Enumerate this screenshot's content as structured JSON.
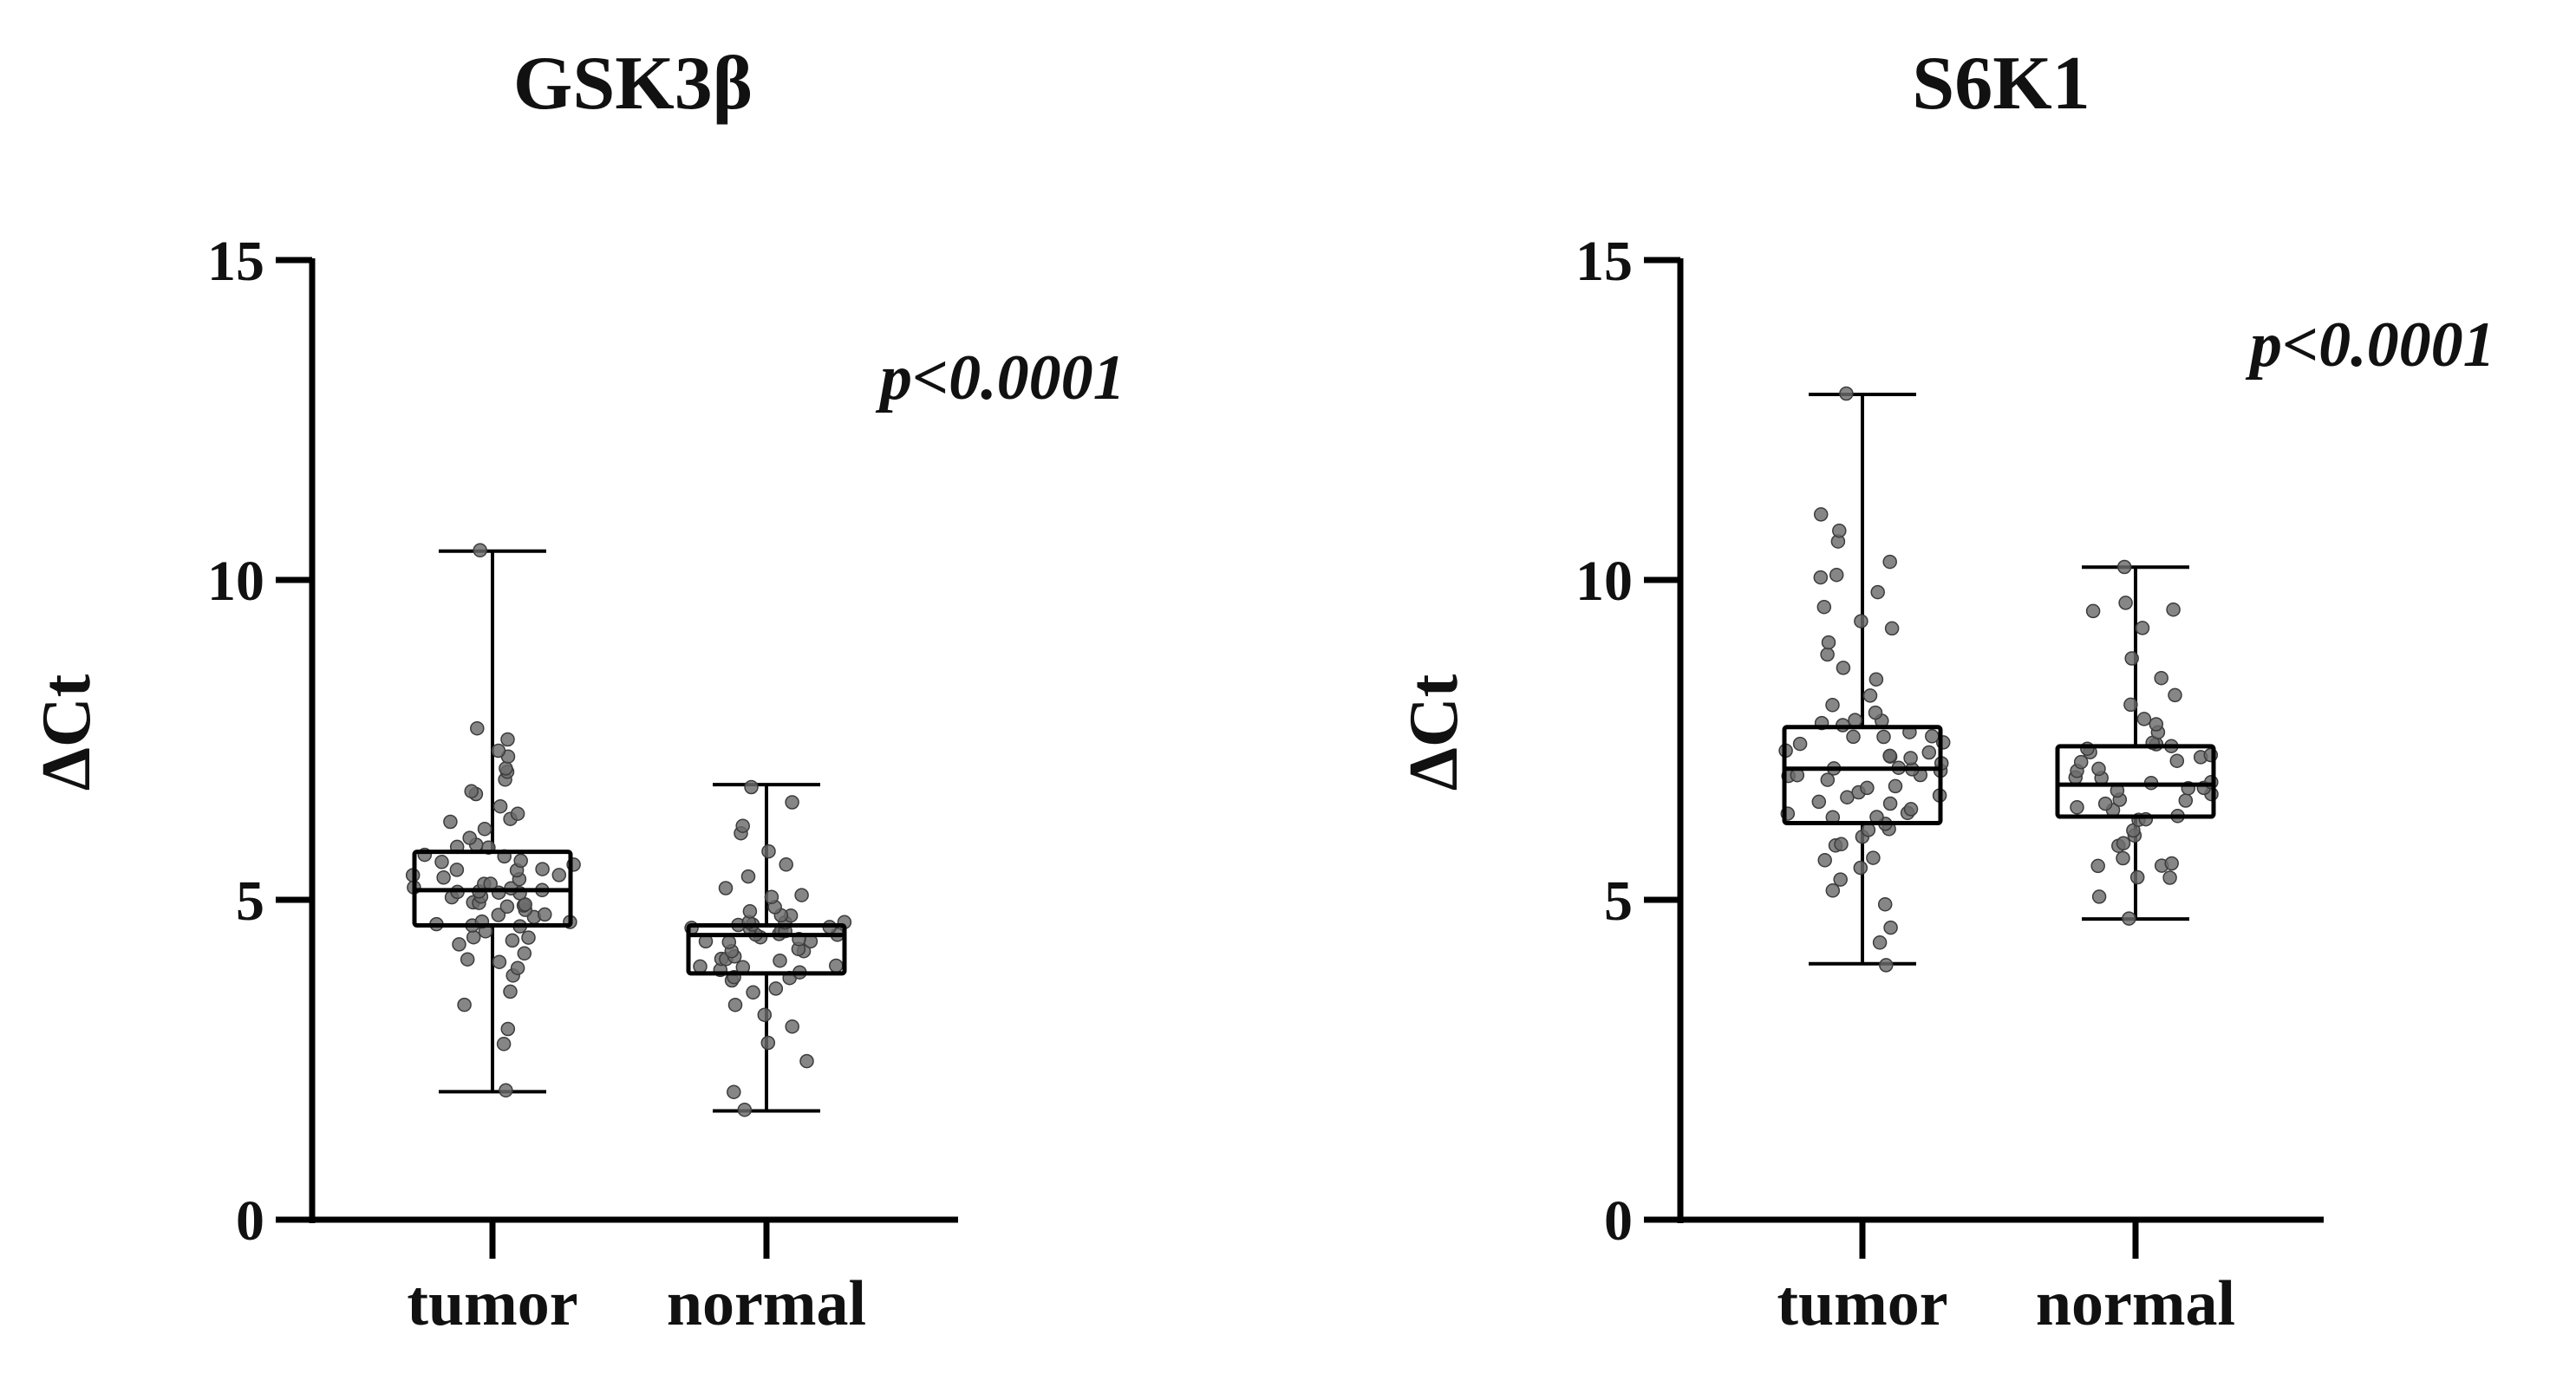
{
  "chart_data": [
    {
      "type": "box",
      "title": "GSK3β",
      "xlabel": "",
      "ylabel": "ΔCt",
      "ylim": [
        0,
        15
      ],
      "yticks": [
        "0",
        "5",
        "10",
        "15"
      ],
      "annotation": "p<0.0001",
      "grid": false,
      "series": [
        {
          "category": "tumor",
          "min": 2.0,
          "q1": 4.6,
          "median": 5.15,
          "q3": 5.75,
          "max": 10.45,
          "points": [
            2.0,
            2.8,
            3.0,
            3.4,
            3.6,
            3.8,
            3.9,
            4.0,
            4.1,
            4.2,
            4.3,
            4.35,
            4.4,
            4.45,
            4.5,
            4.55,
            4.6,
            4.6,
            4.65,
            4.7,
            4.7,
            4.75,
            4.8,
            4.8,
            4.85,
            4.9,
            4.9,
            4.95,
            5.0,
            5.0,
            5.0,
            5.05,
            5.1,
            5.1,
            5.15,
            5.15,
            5.2,
            5.2,
            5.25,
            5.3,
            5.3,
            5.35,
            5.4,
            5.4,
            5.45,
            5.5,
            5.5,
            5.55,
            5.6,
            5.65,
            5.7,
            5.75,
            5.8,
            5.85,
            5.9,
            6.0,
            6.1,
            6.2,
            6.3,
            6.4,
            6.5,
            6.6,
            6.7,
            6.9,
            7.0,
            7.1,
            7.2,
            7.3,
            7.5,
            7.7,
            10.45
          ]
        },
        {
          "category": "normal",
          "min": 1.7,
          "q1": 3.85,
          "median": 4.45,
          "q3": 4.6,
          "max": 6.8,
          "points": [
            1.7,
            2.0,
            2.5,
            2.8,
            3.0,
            3.2,
            3.4,
            3.5,
            3.6,
            3.7,
            3.75,
            3.8,
            3.85,
            3.9,
            3.95,
            4.0,
            4.0,
            4.05,
            4.1,
            4.1,
            4.15,
            4.2,
            4.2,
            4.25,
            4.3,
            4.3,
            4.35,
            4.4,
            4.4,
            4.45,
            4.45,
            4.5,
            4.5,
            4.5,
            4.55,
            4.55,
            4.6,
            4.6,
            4.6,
            4.65,
            4.7,
            4.7,
            4.75,
            4.8,
            4.85,
            4.9,
            5.0,
            5.1,
            5.2,
            5.4,
            5.6,
            5.8,
            6.0,
            6.2,
            6.5,
            6.8
          ]
        }
      ]
    },
    {
      "type": "box",
      "title": "S6K1",
      "xlabel": "",
      "ylabel": "ΔCt",
      "ylim": [
        0,
        15
      ],
      "yticks": [
        "0",
        "5",
        "10",
        "15"
      ],
      "annotation": "p<0.0001",
      "grid": false,
      "series": [
        {
          "category": "tumor",
          "min": 4.0,
          "q1": 6.2,
          "median": 7.05,
          "q3": 7.7,
          "max": 12.9,
          "points": [
            4.0,
            4.3,
            4.6,
            4.9,
            5.1,
            5.3,
            5.5,
            5.6,
            5.7,
            5.8,
            5.9,
            6.0,
            6.05,
            6.1,
            6.2,
            6.25,
            6.3,
            6.35,
            6.4,
            6.45,
            6.5,
            6.55,
            6.6,
            6.65,
            6.7,
            6.75,
            6.8,
            6.85,
            6.9,
            6.95,
            7.0,
            7.0,
            7.05,
            7.05,
            7.1,
            7.15,
            7.2,
            7.2,
            7.25,
            7.3,
            7.35,
            7.4,
            7.45,
            7.5,
            7.55,
            7.6,
            7.65,
            7.7,
            7.75,
            7.8,
            7.85,
            7.9,
            8.0,
            8.2,
            8.4,
            8.6,
            8.8,
            9.0,
            9.2,
            9.4,
            9.6,
            9.8,
            10.0,
            10.1,
            10.3,
            10.6,
            10.8,
            11.0,
            12.9
          ]
        },
        {
          "category": "normal",
          "min": 4.7,
          "q1": 6.3,
          "median": 6.8,
          "q3": 7.4,
          "max": 10.2,
          "points": [
            4.7,
            5.0,
            5.3,
            5.4,
            5.5,
            5.5,
            5.6,
            5.7,
            5.8,
            5.9,
            6.0,
            6.1,
            6.2,
            6.3,
            6.35,
            6.4,
            6.45,
            6.5,
            6.55,
            6.6,
            6.65,
            6.7,
            6.75,
            6.8,
            6.8,
            6.85,
            6.9,
            6.95,
            7.0,
            7.05,
            7.1,
            7.15,
            7.2,
            7.25,
            7.3,
            7.35,
            7.4,
            7.45,
            7.5,
            7.6,
            7.7,
            7.8,
            8.0,
            8.2,
            8.5,
            8.8,
            9.2,
            9.5,
            9.5,
            9.6,
            10.2
          ]
        }
      ]
    }
  ]
}
